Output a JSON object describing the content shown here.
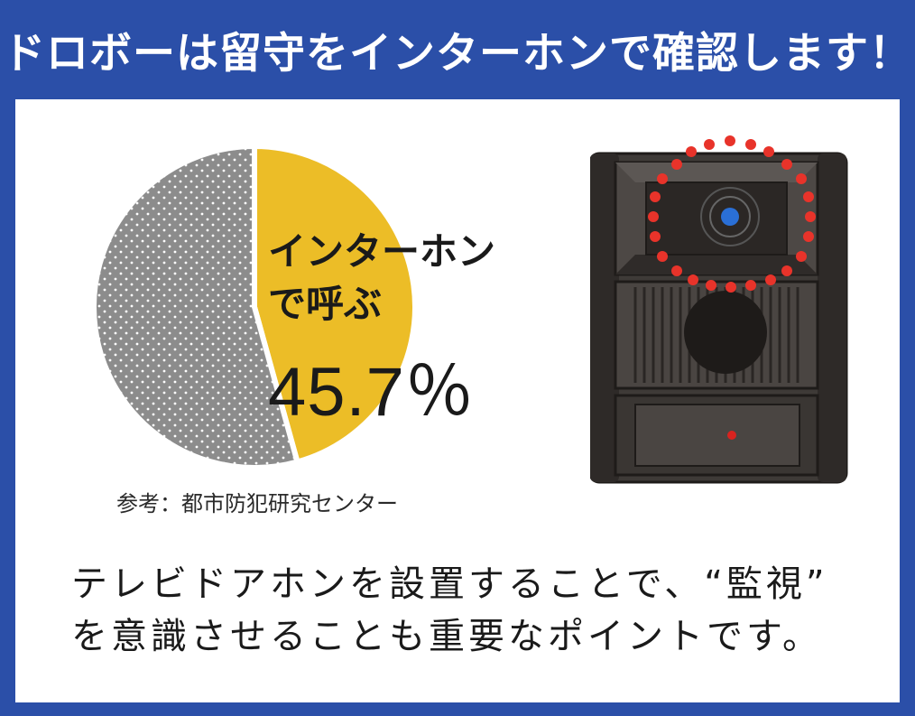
{
  "header": {
    "title": "ドロボーは留守をインターホンで確認します！"
  },
  "chart_data": {
    "type": "pie",
    "slices": [
      {
        "label": "インターホンで呼ぶ",
        "value": 45.7,
        "color": "#ecbd27"
      },
      {
        "label": "",
        "value": 54.3,
        "color": "#8c8c8c"
      }
    ],
    "label_line1": "インターホン",
    "label_line2": "で呼ぶ",
    "label_value": "45.7％"
  },
  "source": "参考：都市防犯研究センター",
  "caption": {
    "line1": "テレビドアホンを設置することで、“監視”",
    "line2": "を意識させることも重要なポイントです。"
  },
  "colors": {
    "frame": "#2b4fa8",
    "highlight_dots": "#e8332a",
    "camera_lens": "#2a6fd6",
    "button_led": "#d9231f"
  },
  "icons": {
    "intercom": "video-intercom-icon"
  }
}
